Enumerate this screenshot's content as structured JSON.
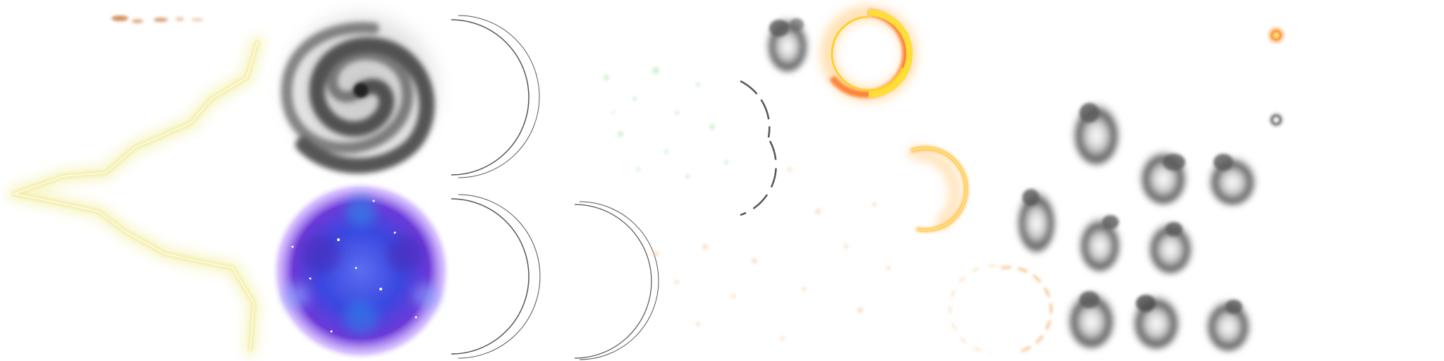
{
  "sheet": {
    "background": "#ffffff",
    "sprites": [
      {
        "name": "ember-streak",
        "color": "#c8743a"
      },
      {
        "name": "lightning-bolt",
        "color": "#f3f0a6"
      },
      {
        "name": "smoke-vortex",
        "color": "#4a4a4a"
      },
      {
        "name": "galaxy-orb",
        "colors": [
          "#3c2fd6",
          "#2a74e8",
          "#7c3ad0",
          "#c9a9ff"
        ]
      },
      {
        "name": "ring-outline",
        "color": "#555555"
      },
      {
        "name": "green-particles",
        "color": "#9ee09e"
      },
      {
        "name": "orange-particles",
        "color": "#f5c9a0"
      },
      {
        "name": "fire-ring",
        "colors": [
          "#ffde3a",
          "#ff9a00",
          "#ff5a00"
        ]
      },
      {
        "name": "smoke-puff",
        "color": "#5a5a5a"
      },
      {
        "name": "glow-dot",
        "colors": [
          "#ff9a3a",
          "#8a8a8a"
        ]
      }
    ]
  }
}
